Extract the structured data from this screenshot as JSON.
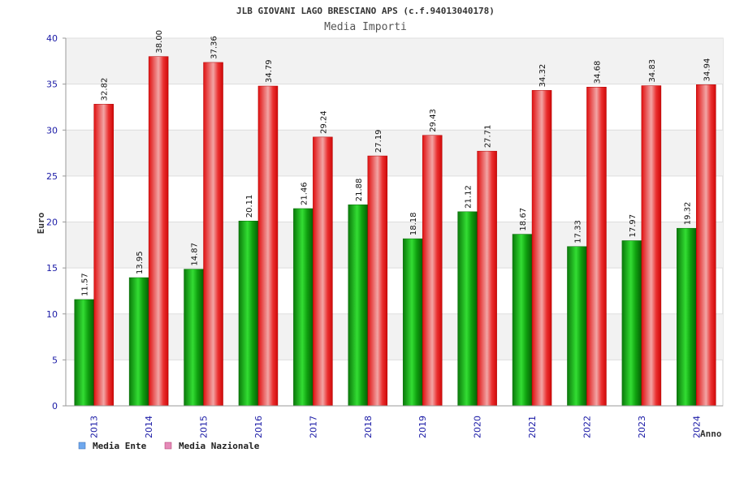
{
  "chart_data": {
    "type": "bar",
    "title": "JLB GIOVANI LAGO BRESCIANO APS (c.f.94013040178)",
    "subtitle": "Media Importi",
    "xlabel": "Anno",
    "ylabel": "Euro",
    "ylim": [
      0,
      40
    ],
    "yticks": [
      "0",
      "5",
      "10",
      "15",
      "20",
      "25",
      "30",
      "35",
      "40"
    ],
    "grid": true,
    "legend_position": "bottom-left",
    "categories": [
      "2013",
      "2014",
      "2015",
      "2016",
      "2017",
      "2018",
      "2019",
      "2020",
      "2021",
      "2022",
      "2023",
      "2024"
    ],
    "series": [
      {
        "name": "Media Ente",
        "color": "#1ea11e",
        "legend_color": "#6fa8ee",
        "values": [
          11.57,
          13.95,
          14.87,
          20.11,
          21.46,
          21.88,
          18.18,
          21.12,
          18.67,
          17.33,
          17.97,
          19.32
        ],
        "labels": [
          "11.57",
          "13.95",
          "14.87",
          "20.11",
          "21.46",
          "21.88",
          "18.18",
          "21.12",
          "18.67",
          "17.33",
          "17.97",
          "19.32"
        ]
      },
      {
        "name": "Media Nazionale",
        "color": "#e31a1a",
        "legend_color": "#e58ab8",
        "values": [
          32.82,
          38.0,
          37.36,
          34.79,
          29.24,
          27.19,
          29.43,
          27.71,
          34.32,
          34.68,
          34.83,
          34.94
        ],
        "labels": [
          "32.82",
          "38.00",
          "37.36",
          "34.79",
          "29.24",
          "27.19",
          "29.43",
          "27.71",
          "34.32",
          "34.68",
          "34.83",
          "34.94"
        ]
      }
    ]
  }
}
